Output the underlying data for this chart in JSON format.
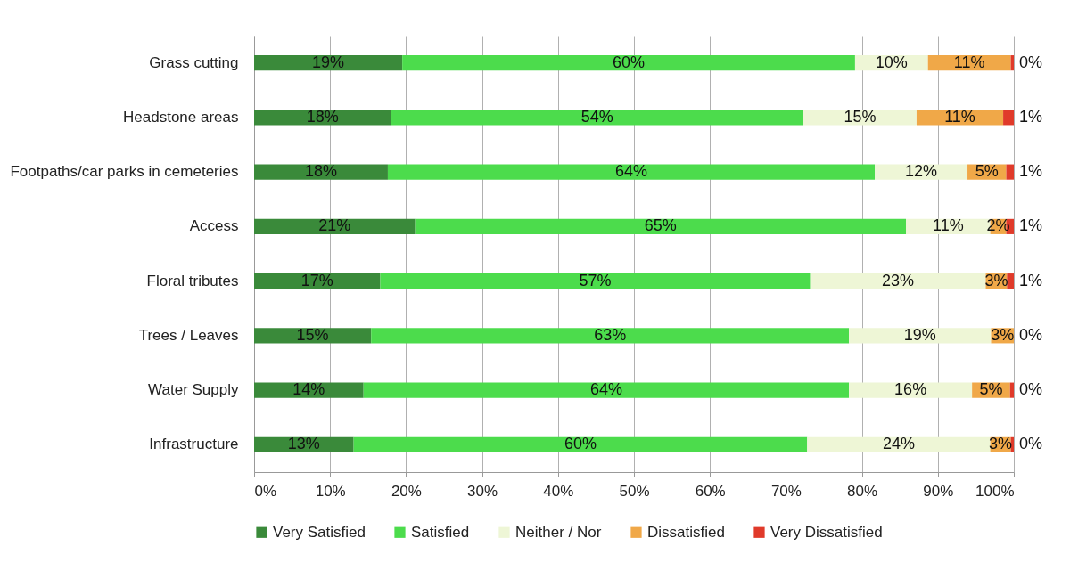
{
  "chart_data": {
    "type": "bar",
    "orientation": "horizontal",
    "stacked": true,
    "categories": [
      "Grass cutting",
      "Headstone areas",
      "Footpaths/car parks in cemeteries",
      "Access",
      "Floral tributes",
      "Trees / Leaves",
      "Water Supply",
      "Infrastructure"
    ],
    "series": [
      {
        "name": "Very Satisfied",
        "color": "#3a8a3a",
        "values": [
          19.5,
          18.0,
          17.6,
          21.2,
          16.6,
          15.4,
          14.4,
          13.1
        ],
        "value_labels": [
          "19%",
          "18%",
          "18%",
          "21%",
          "17%",
          "15%",
          "14%",
          "13%"
        ]
      },
      {
        "name": "Satisfied",
        "color": "#4cdc4c",
        "values": [
          59.6,
          54.3,
          64.1,
          64.6,
          56.6,
          62.9,
          63.9,
          59.7
        ],
        "value_labels": [
          "60%",
          "54%",
          "64%",
          "65%",
          "57%",
          "63%",
          "64%",
          "60%"
        ]
      },
      {
        "name": "Neither / Nor",
        "color": "#eef6d6",
        "values": [
          9.6,
          14.9,
          12.2,
          11.1,
          23.1,
          18.7,
          16.2,
          24.1
        ],
        "value_labels": [
          "10%",
          "15%",
          "12%",
          "11%",
          "23%",
          "19%",
          "16%",
          "24%"
        ]
      },
      {
        "name": "Dissatisfied",
        "color": "#f0a848",
        "values": [
          10.9,
          11.4,
          5.1,
          2.1,
          2.8,
          3.0,
          5.0,
          2.7
        ],
        "value_labels": [
          "11%",
          "11%",
          "5%",
          "2%",
          "3%",
          "3%",
          "5%",
          "3%"
        ]
      },
      {
        "name": "Very Dissatisfied",
        "color": "#e03a2a",
        "values": [
          0.4,
          1.4,
          1.0,
          1.0,
          0.9,
          0,
          0.5,
          0.4
        ],
        "value_labels": [
          "0%",
          "1%",
          "1%",
          "1%",
          "1%",
          "0%",
          "0%",
          "0%"
        ]
      }
    ],
    "xlim": [
      0,
      100
    ],
    "xticks": [
      {
        "value": 0,
        "label": "0%"
      },
      {
        "value": 10,
        "label": "10%"
      },
      {
        "value": 20,
        "label": "20%"
      },
      {
        "value": 30,
        "label": "30%"
      },
      {
        "value": 40,
        "label": "40%"
      },
      {
        "value": 50,
        "label": "50%"
      },
      {
        "value": 60,
        "label": "60%"
      },
      {
        "value": 70,
        "label": "70%"
      },
      {
        "value": 80,
        "label": "80%"
      },
      {
        "value": 90,
        "label": "90%"
      },
      {
        "value": 100,
        "label": "100%"
      }
    ],
    "grid": "x",
    "legend": "bottom"
  }
}
